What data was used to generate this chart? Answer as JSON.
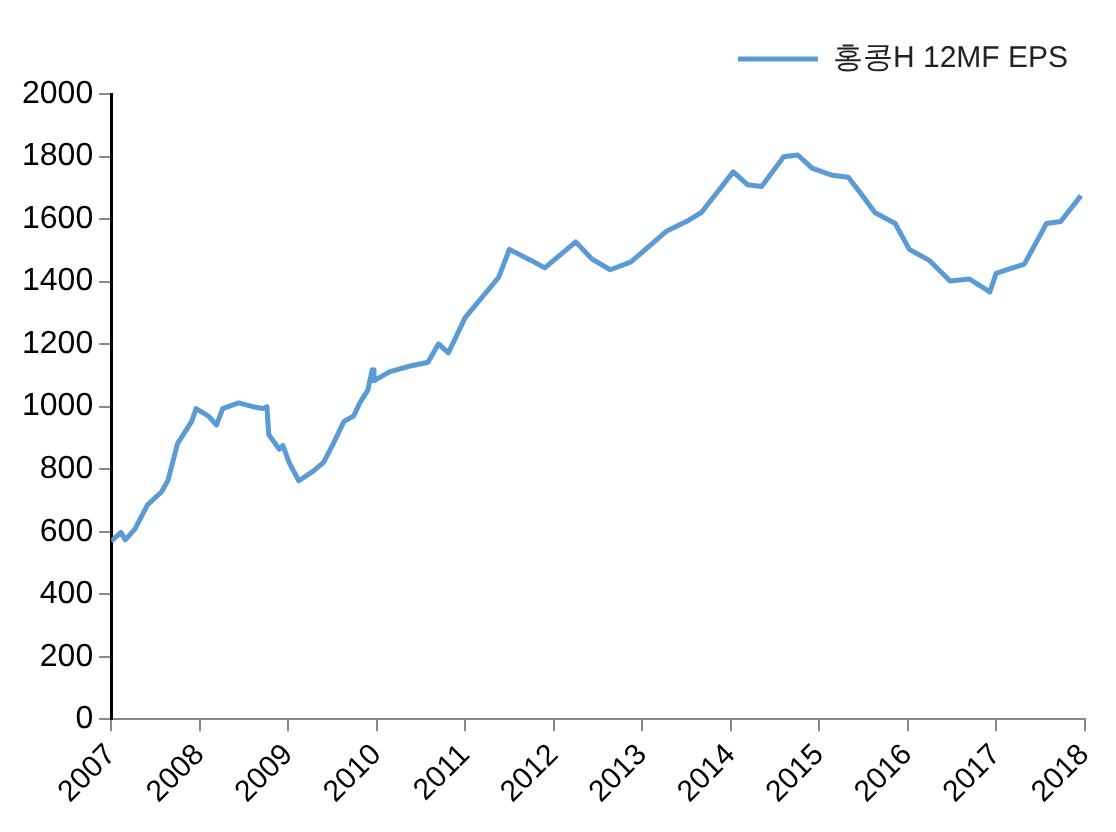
{
  "chart_data": {
    "type": "line",
    "x": [
      2007,
      2007.11,
      2007.16,
      2007.27,
      2007.41,
      2007.57,
      2007.64,
      2007.75,
      2007.91,
      2007.96,
      2008.1,
      2008.19,
      2008.26,
      2008.44,
      2008.6,
      2008.71,
      2008.76,
      2008.78,
      2008.9,
      2008.94,
      2009.01,
      2009.12,
      2009.28,
      2009.4,
      2009.51,
      2009.63,
      2009.74,
      2009.81,
      2009.9,
      2009.95,
      2009.97,
      2010.15,
      2010.38,
      2010.58,
      2010.7,
      2010.81,
      2011.0,
      2011.38,
      2011.5,
      2011.75,
      2011.9,
      2012.25,
      2012.43,
      2012.64,
      2012.87,
      2013.28,
      2013.5,
      2013.67,
      2014.03,
      2014.19,
      2014.35,
      2014.6,
      2014.76,
      2014.92,
      2015.15,
      2015.33,
      2015.49,
      2015.63,
      2015.86,
      2016.02,
      2016.25,
      2016.48,
      2016.7,
      2016.93,
      2017.0,
      2017.32,
      2017.57,
      2017.73,
      2017.96
    ],
    "series": [
      {
        "name": "홍콩H 12MF EPS",
        "color": "#5b9bd5",
        "values": [
          570,
          598,
          574,
          609,
          686,
          728,
          763,
          882,
          953,
          994,
          970,
          941,
          994,
          1012,
          1000,
          994,
          1000,
          911,
          864,
          876,
          822,
          763,
          793,
          822,
          882,
          953,
          970,
          1012,
          1053,
          1118,
          1083,
          1112,
          1130,
          1142,
          1201,
          1172,
          1285,
          1414,
          1503,
          1467,
          1444,
          1527,
          1473,
          1438,
          1462,
          1562,
          1592,
          1621,
          1751,
          1710,
          1704,
          1799,
          1805,
          1763,
          1740,
          1734,
          1675,
          1621,
          1586,
          1503,
          1467,
          1402,
          1408,
          1367,
          1426,
          1456,
          1586,
          1592,
          1675
        ]
      }
    ],
    "xlim": [
      2007,
      2018
    ],
    "xticks": [
      2007,
      2008,
      2009,
      2010,
      2011,
      2012,
      2013,
      2014,
      2015,
      2016,
      2017,
      2018
    ],
    "ylim": [
      0,
      2000
    ],
    "yticks": [
      0,
      200,
      400,
      600,
      800,
      1000,
      1200,
      1400,
      1600,
      1800,
      2000
    ],
    "grid": false,
    "legend": "top right",
    "marker": "none",
    "line_style": "solid"
  }
}
